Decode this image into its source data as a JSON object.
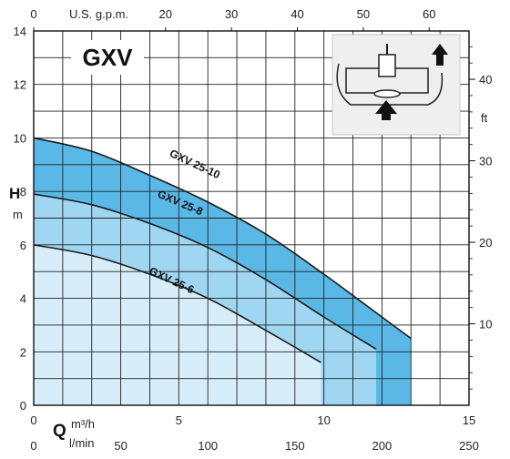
{
  "chart_data": {
    "type": "area",
    "title": "GXV",
    "ylabel": "H",
    "ylabel_unit": "m",
    "xlabel": "Q",
    "xlabel_unit": "m³/h",
    "x_bottom2_unit": "l/min",
    "x_top_label": "U.S. g.p.m.",
    "y_right_unit": "ft",
    "xlim": [
      0,
      15
    ],
    "ylim": [
      0,
      14
    ],
    "grid": true,
    "x_ticks": [
      "0",
      "5",
      "10",
      "15"
    ],
    "y_ticks": [
      "0",
      "2",
      "4",
      "6",
      "8",
      "10",
      "12",
      "14"
    ],
    "x_ticks_lmin": [
      "0",
      "50",
      "100",
      "150",
      "200",
      "250"
    ],
    "x_ticks_gpm": [
      "0",
      "20",
      "30",
      "40",
      "50",
      "60"
    ],
    "y_ticks_ft": [
      "10",
      "20",
      "30",
      "40"
    ],
    "series": [
      {
        "name": "GXV 25-10",
        "x": [
          0,
          2,
          4,
          6,
          8,
          10,
          12,
          13
        ],
        "y": [
          10,
          9.5,
          8.6,
          7.6,
          6.4,
          4.9,
          3.3,
          2.5
        ],
        "max_x": 13.0
      },
      {
        "name": "GXV 25-8",
        "x": [
          0,
          2,
          4,
          6,
          8,
          10,
          11.8
        ],
        "y": [
          7.9,
          7.5,
          6.8,
          5.9,
          4.7,
          3.3,
          2.1
        ],
        "max_x": 11.8
      },
      {
        "name": "GXV 25-6",
        "x": [
          0,
          2,
          4,
          6,
          8,
          9.9
        ],
        "y": [
          6.0,
          5.6,
          4.9,
          4.0,
          2.8,
          1.6
        ],
        "max_x": 9.9
      }
    ],
    "colors": {
      "band_10": "#5ab8e6",
      "band_8": "#9fd6f1",
      "band_6": "#d7eefa",
      "grid": "#222222",
      "line": "#1a1a1a"
    }
  }
}
